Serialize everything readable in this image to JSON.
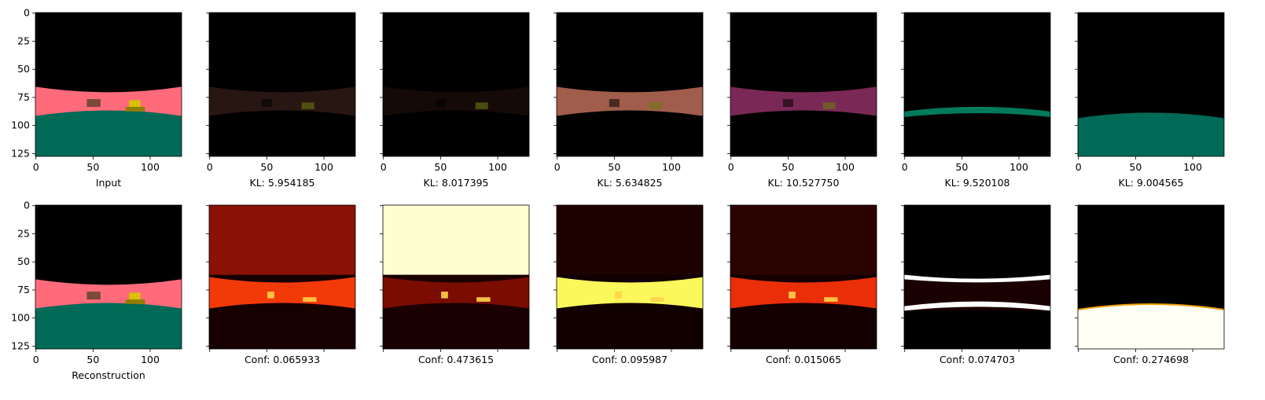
{
  "chart_data": {
    "type": "image-grid",
    "axis_ticks": [
      "0",
      "25",
      "50",
      "75",
      "100",
      "125"
    ],
    "x_ticks": [
      "0",
      "50",
      "100"
    ],
    "image_size": [
      128,
      128
    ],
    "top_row": [
      {
        "caption": "Input",
        "style": "scene",
        "floor": "#ff6b7b",
        "ground": "#006a56"
      },
      {
        "caption": "KL: 5.954185",
        "style": "dim",
        "floor": "#281612",
        "ground": "#000000"
      },
      {
        "caption": "KL: 8.017395",
        "style": "dim",
        "floor": "#150a08",
        "ground": "#000000"
      },
      {
        "caption": "KL: 5.634825",
        "style": "dim",
        "floor": "#a05d4b",
        "ground": "#000000"
      },
      {
        "caption": "KL: 10.527750",
        "style": "dim",
        "floor": "#7a2855",
        "ground": "#000000"
      },
      {
        "caption": "KL: 9.520108",
        "style": "band",
        "floor": "#000000",
        "ground": "#007a5c"
      },
      {
        "caption": "KL: 9.004565",
        "style": "lower",
        "floor": "#000000",
        "ground": "#006a56"
      }
    ],
    "bottom_row": [
      {
        "caption": "Reconstruction",
        "style": "scene"
      },
      {
        "caption": "Conf: 0.065933",
        "style": "heat",
        "top": "#8a1205",
        "mid": "#f23a08",
        "bottom": "#160000"
      },
      {
        "caption": "Conf: 0.473615",
        "style": "heat",
        "top": "#fffed2",
        "mid": "#7a0c00",
        "bottom": "#1a0000"
      },
      {
        "caption": "Conf: 0.095987",
        "style": "heat",
        "top": "#1e0200",
        "mid": "#faf85a",
        "bottom": "#100000"
      },
      {
        "caption": "Conf: 0.015065",
        "style": "heat",
        "top": "#2b0300",
        "mid": "#ea2e08",
        "bottom": "#140000"
      },
      {
        "caption": "Conf: 0.074703",
        "style": "lines",
        "top": "#000000",
        "mid": "#ffffff",
        "bottom": "#1a0000"
      },
      {
        "caption": "Conf: 0.274698",
        "style": "whitebottom",
        "top": "#000000",
        "mid": "#ffffff",
        "bottom": "#fffff6"
      }
    ]
  }
}
